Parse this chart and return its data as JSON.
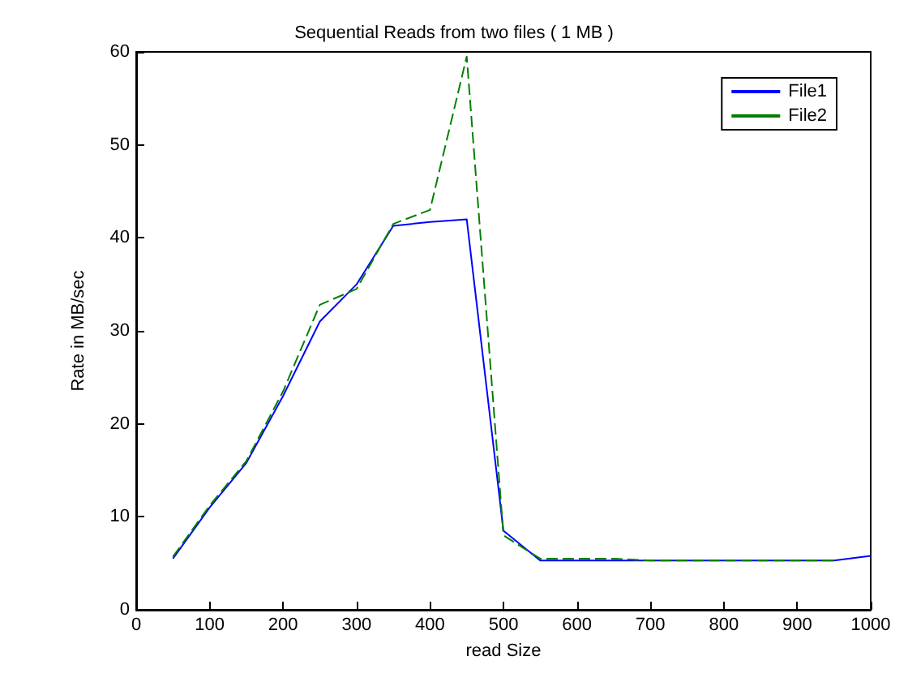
{
  "chart_data": {
    "type": "line",
    "title": "Sequential Reads from two files ( 1 MB )",
    "xlabel": "read Size",
    "ylabel": "Rate in MB/sec",
    "x": [
      50,
      100,
      150,
      200,
      250,
      300,
      350,
      400,
      450,
      500,
      550,
      600,
      650,
      700,
      750,
      800,
      850,
      900,
      950,
      1000
    ],
    "series": [
      {
        "name": "File1",
        "color": "#0000ff",
        "line_style": "solid",
        "values": [
          5.5,
          11,
          15.8,
          23,
          31,
          35,
          41.3,
          41.7,
          42,
          8.5,
          5.3,
          5.3,
          5.3,
          5.3,
          5.3,
          5.3,
          5.3,
          5.3,
          5.3,
          5.8
        ]
      },
      {
        "name": "File2",
        "color": "#008000",
        "line_style": "dashed",
        "values": [
          5.7,
          11.2,
          16,
          23.5,
          32.8,
          34.5,
          41.5,
          43,
          59.5,
          8,
          5.5,
          5.5,
          5.5,
          5.3,
          5.3,
          5.3,
          5.3,
          5.3,
          5.3,
          null
        ]
      }
    ],
    "xlim": [
      0,
      1000
    ],
    "xticks": [
      0,
      100,
      200,
      300,
      400,
      500,
      600,
      700,
      800,
      900,
      1000
    ],
    "ylim": [
      0,
      60
    ],
    "yticks": [
      0,
      10,
      20,
      30,
      40,
      50,
      60
    ],
    "grid": false,
    "legend": "top right",
    "marker": "none"
  }
}
